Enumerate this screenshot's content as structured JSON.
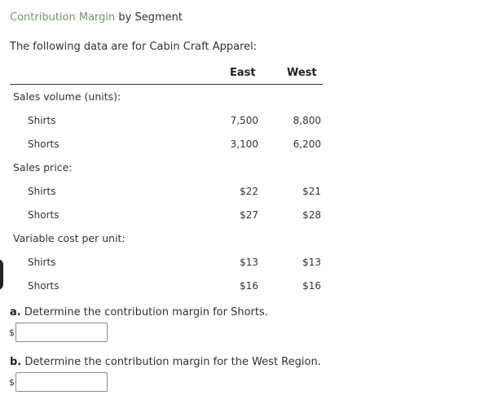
{
  "header": {
    "topic_link": "Contribution Margin",
    "title_rest": " by Segment"
  },
  "intro": "The following data are for Cabin Craft Apparel:",
  "columns": {
    "east": "East",
    "west": "West"
  },
  "sections": [
    {
      "label": "Sales volume (units):",
      "rows": [
        {
          "label": "Shirts",
          "east": "7,500",
          "west": "8,800"
        },
        {
          "label": "Shorts",
          "east": "3,100",
          "west": "6,200"
        }
      ]
    },
    {
      "label": "Sales price:",
      "rows": [
        {
          "label": "Shirts",
          "east": "$22",
          "west": "$21"
        },
        {
          "label": "Shorts",
          "east": "$27",
          "west": "$28"
        }
      ]
    },
    {
      "label": "Variable cost per unit:",
      "rows": [
        {
          "label": "Shirts",
          "east": "$13",
          "west": "$13"
        },
        {
          "label": "Shorts",
          "east": "$16",
          "west": "$16"
        }
      ]
    }
  ],
  "questions": [
    {
      "letter": "a.",
      "text": " Determine the contribution margin for Shorts.",
      "currency": "$",
      "value": ""
    },
    {
      "letter": "b.",
      "text": " Determine the contribution margin for the West Region.",
      "currency": "$",
      "value": ""
    }
  ]
}
